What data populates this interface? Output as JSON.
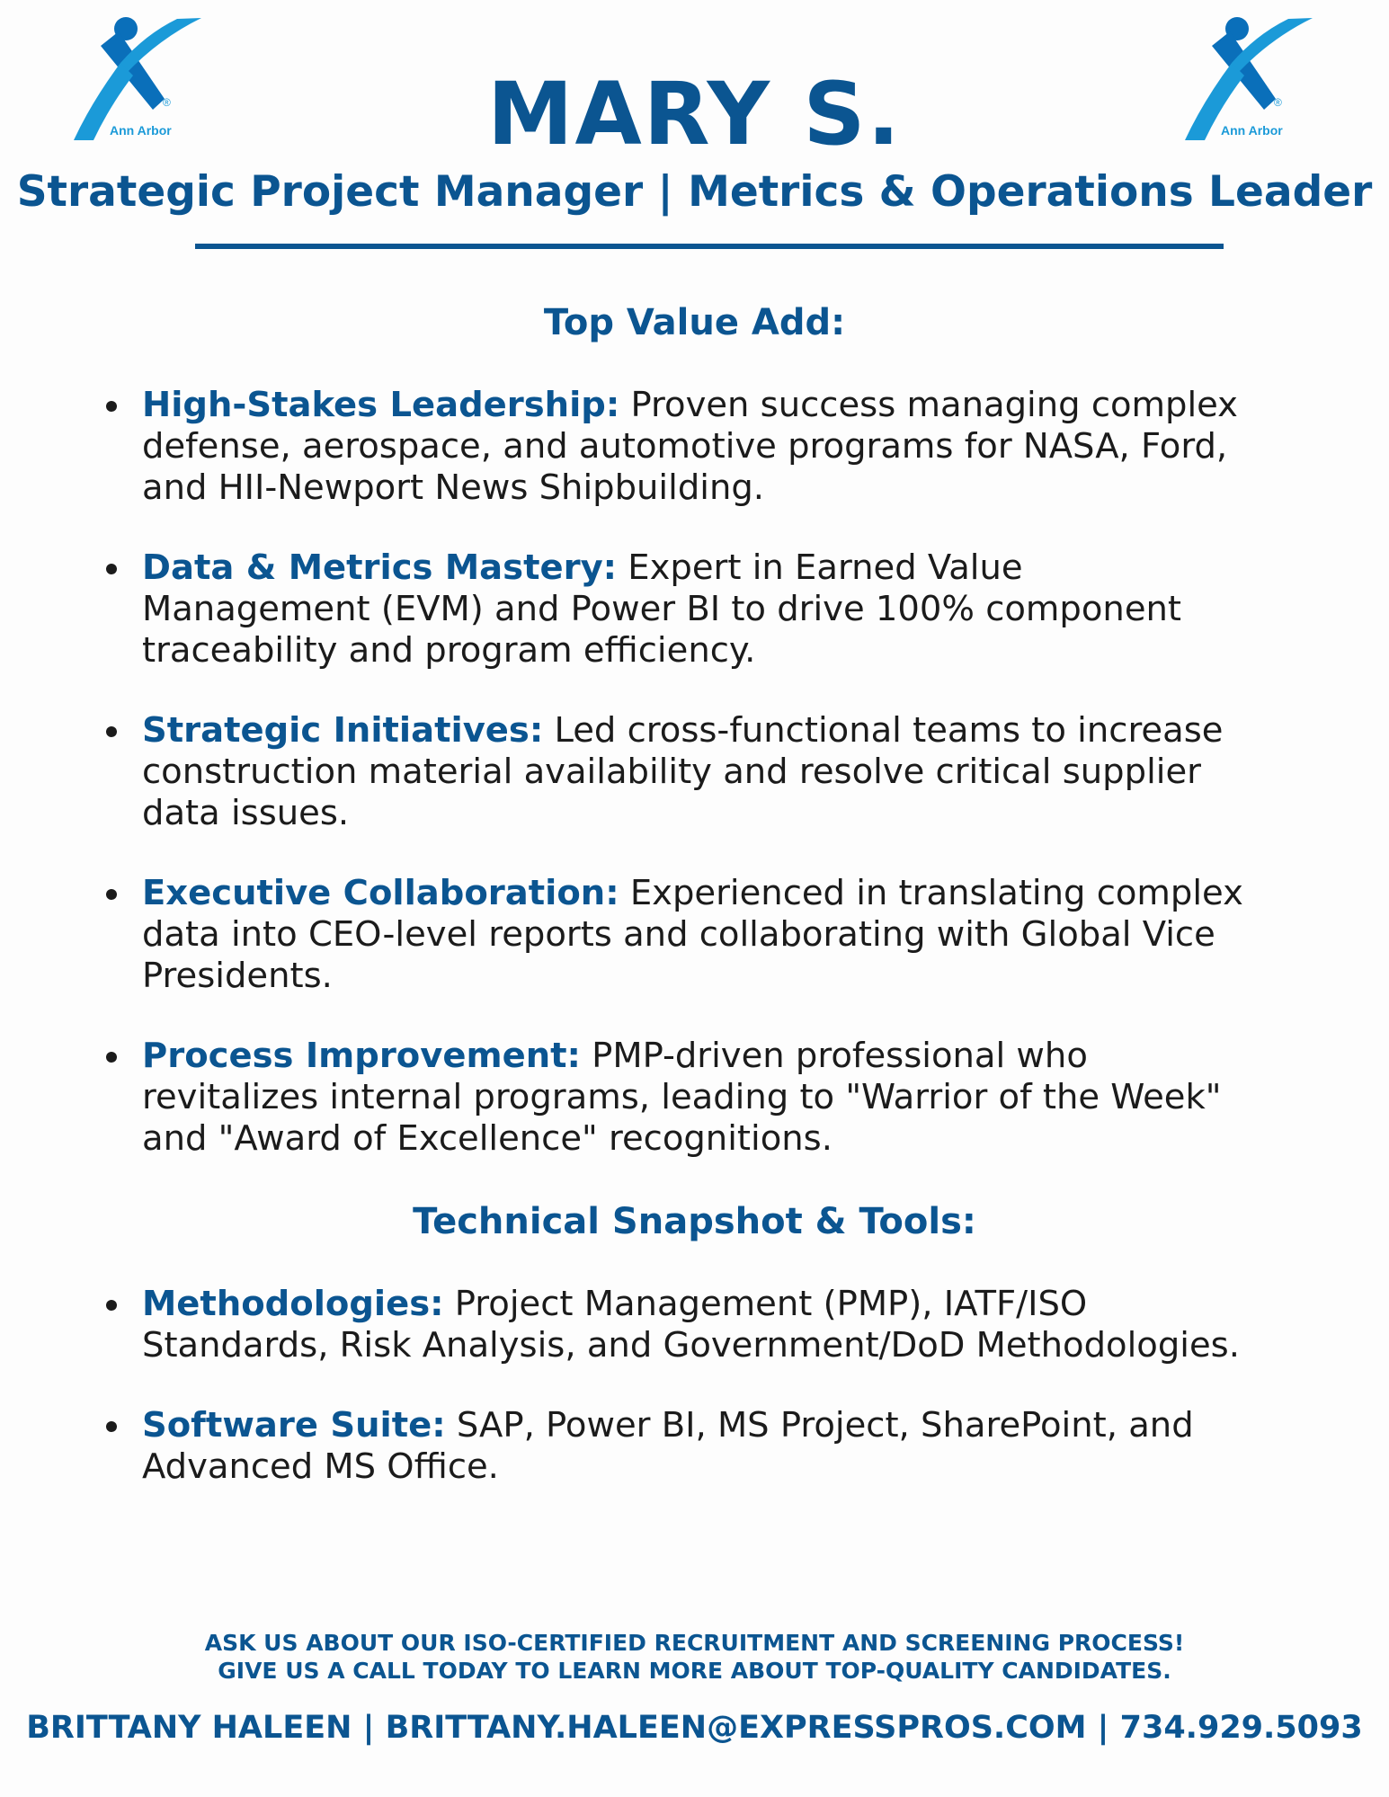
{
  "logo": {
    "label": "Ann Arbor",
    "colors": {
      "dark": "#0a6fba",
      "light": "#1b9ad8"
    }
  },
  "header": {
    "name": "MARY S.",
    "subtitle": "Strategic Project Manager | Metrics & Operations Leader"
  },
  "value_add": {
    "heading": "Top Value Add:",
    "items": [
      {
        "label": "High-Stakes Leadership:",
        "text": " Proven success managing complex defense, aerospace, and automotive programs for NASA, Ford, and HII-Newport News Shipbuilding."
      },
      {
        "label": "Data & Metrics Mastery:",
        "text": " Expert in Earned Value Management (EVM) and Power BI to drive 100% component traceability and program efficiency."
      },
      {
        "label": "Strategic Initiatives:",
        "text": " Led cross-functional teams to increase construction material availability and resolve critical supplier data issues."
      },
      {
        "label": "Executive Collaboration:",
        "text": " Experienced in translating complex data into CEO-level reports and collaborating with Global Vice Presidents."
      },
      {
        "label": "Process Improvement:",
        "text": " PMP-driven professional who revitalizes internal programs, leading to \"Warrior of the Week\" and \"Award of Excellence\" recognitions."
      }
    ]
  },
  "technical": {
    "heading": "Technical Snapshot & Tools:",
    "items": [
      {
        "label": "Methodologies:",
        "text": " Project Management (PMP), IATF/ISO Standards, Risk Analysis, and Government/DoD Methodologies."
      },
      {
        "label": "Software Suite:",
        "text": " SAP, Power BI, MS Project, SharePoint, and Advanced MS Office."
      }
    ]
  },
  "footer": {
    "line1": "ASK US ABOUT OUR ISO-CERTIFIED RECRUITMENT AND SCREENING PROCESS!",
    "line2": "GIVE US A CALL TODAY TO LEARN MORE ABOUT TOP-QUALITY CANDIDATES.",
    "contact": "BRITTANY HALEEN |  BRITTANY.HALEEN@EXPRESSPROS.COM | 734.929.5093"
  }
}
